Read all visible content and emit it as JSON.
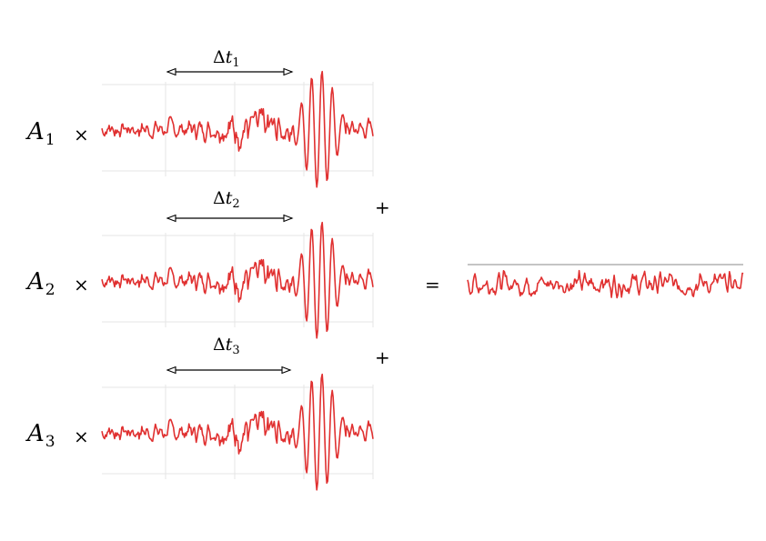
{
  "rows": [
    {
      "amp_base": "A",
      "amp_sub": "1",
      "times": "×",
      "delta": "Δ",
      "dt_var": "t",
      "dt_sub": "1"
    },
    {
      "amp_base": "A",
      "amp_sub": "2",
      "times": "×",
      "delta": "Δ",
      "dt_var": "t",
      "dt_sub": "2"
    },
    {
      "amp_base": "A",
      "amp_sub": "3",
      "times": "×",
      "delta": "Δ",
      "dt_var": "t",
      "dt_sub": "3"
    }
  ],
  "plus_1": "+",
  "plus_2": "+",
  "equals": "=",
  "colors": {
    "wave": "#e03030",
    "grid": "#e6e6e6",
    "arrow": "#000000"
  }
}
